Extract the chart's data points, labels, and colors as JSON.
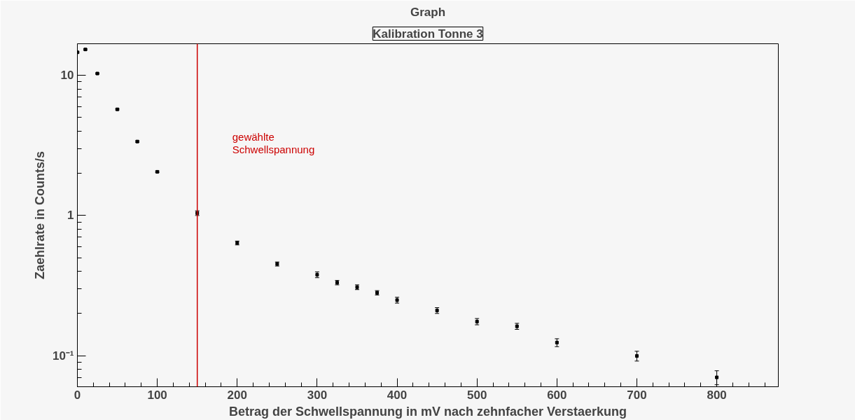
{
  "chart_data": {
    "type": "scatter",
    "title": "Graph",
    "subtitle": "Kalibration Tonne 3",
    "xlabel": "Betrag der Schwellspannung in mV nach zehnfacher Verstaerkung",
    "ylabel": "Zaehlrate in Counts/s",
    "x": [
      0,
      10,
      25,
      50,
      75,
      100,
      150,
      200,
      250,
      300,
      325,
      350,
      375,
      400,
      450,
      500,
      550,
      600,
      700,
      800
    ],
    "series": [
      {
        "color": "#000000",
        "values": [
          14.6,
          15.3,
          10.3,
          5.72,
          3.37,
          2.05,
          1.04,
          0.637,
          0.451,
          0.378,
          0.332,
          0.308,
          0.281,
          0.249,
          0.21,
          0.175,
          0.162,
          0.124,
          0.0995,
          0.07
        ],
        "errors": [
          0.15,
          0.15,
          0.1,
          0.06,
          0.04,
          0.025,
          0.04,
          0.02,
          0.015,
          0.018,
          0.012,
          0.012,
          0.01,
          0.012,
          0.01,
          0.009,
          0.008,
          0.008,
          0.008,
          0.008
        ]
      }
    ],
    "log": "y",
    "xlim": [
      0,
      877
    ],
    "ylim": [
      0.06,
      16.8
    ],
    "xticks": [
      0,
      100,
      200,
      300,
      400,
      500,
      600,
      700,
      800
    ],
    "yticks": [
      {
        "value": 0.1,
        "label": "10⁻¹"
      },
      1,
      10
    ],
    "grid": false,
    "marker": "square",
    "ref_lines": [
      {
        "axis": "x",
        "value": 150,
        "label": "gewählte\nSchwellspannung",
        "color": "#cc0000"
      }
    ]
  }
}
